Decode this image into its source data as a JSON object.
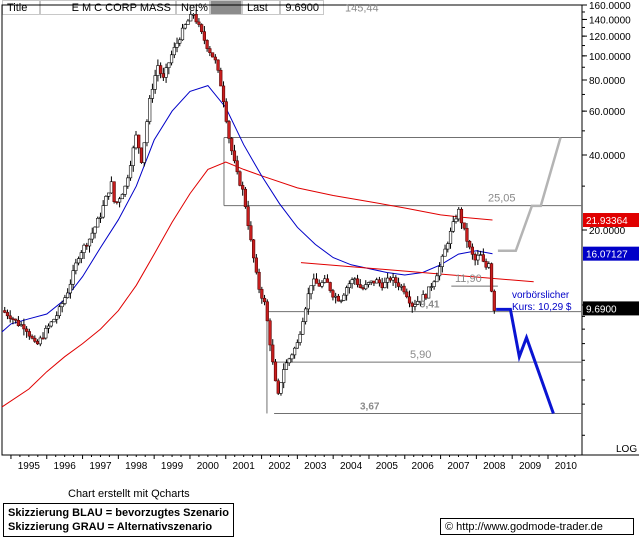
{
  "header": {
    "title_label": "Title",
    "instrument": "E M C CORP MASS",
    "net_label": "Net%",
    "last_label": "Last",
    "last_value": "9.6900"
  },
  "footer": {
    "credit": "Chart erstellt mit Qcharts",
    "legend_blue": "Skizzierung BLAU = bevorzugtes Szenario",
    "legend_grey": "Skizzierung GRAU = Alternativszenario",
    "source": "© http://www.godmode-trader.de"
  },
  "chart_data": {
    "type": "candlestick",
    "title": "E M C CORP MASS",
    "scale": "log",
    "ylim": [
      2.5,
      160
    ],
    "xlim": [
      1994.75,
      2010.95
    ],
    "y_ticks": [
      "160.0000",
      "140.0000",
      "120.0000",
      "100.0000",
      "80.0000",
      "60.0000",
      "40.0000",
      "20.0000"
    ],
    "y_tick_values": [
      160,
      140,
      120,
      100,
      80,
      60,
      40,
      20
    ],
    "log_label": "LOG",
    "x_ticks": [
      "1995",
      "1996",
      "1997",
      "1998",
      "1999",
      "2000",
      "2001",
      "2002",
      "2003",
      "2004",
      "2005",
      "2006",
      "2007",
      "2008",
      "2009",
      "2010"
    ],
    "price_labels": [
      {
        "text": "21.93364",
        "value": 21.93364,
        "color": "#e00000"
      },
      {
        "text": "16.07127",
        "value": 16.07127,
        "color": "#0000c8"
      },
      {
        "text": "9.6900",
        "value": 9.69,
        "color": "#000000"
      }
    ],
    "levels": [
      {
        "label": "145,44",
        "value": 145.44
      },
      {
        "label": "25,05",
        "value": 25.05
      },
      {
        "label": "11,90",
        "value": 11.9
      },
      {
        "label": "9,41",
        "value": 9.41
      },
      {
        "label": "5,90",
        "value": 5.9
      },
      {
        "label": "3,67",
        "value": 3.67
      }
    ],
    "note": {
      "line1": "vorbörslicher",
      "line2": "Kurs: 10,29 $"
    },
    "price_path": [
      [
        1994.75,
        9.5
      ],
      [
        1995.0,
        9.0
      ],
      [
        1995.2,
        8.4
      ],
      [
        1995.4,
        8.2
      ],
      [
        1995.7,
        6.8
      ],
      [
        1996.0,
        8.0
      ],
      [
        1996.3,
        9.2
      ],
      [
        1996.6,
        11.5
      ],
      [
        1996.9,
        16.0
      ],
      [
        1997.2,
        18.5
      ],
      [
        1997.5,
        23.0
      ],
      [
        1997.8,
        31.0
      ],
      [
        1997.9,
        25.0
      ],
      [
        1998.2,
        30.0
      ],
      [
        1998.5,
        48.0
      ],
      [
        1998.65,
        38.0
      ],
      [
        1998.9,
        70.0
      ],
      [
        1999.1,
        92.0
      ],
      [
        1999.25,
        80.0
      ],
      [
        1999.45,
        98.0
      ],
      [
        1999.7,
        118.0
      ],
      [
        1999.9,
        135.0
      ],
      [
        2000.1,
        148.0
      ],
      [
        2000.3,
        125.0
      ],
      [
        2000.5,
        108.0
      ],
      [
        2000.7,
        96.0
      ],
      [
        2000.9,
        73.0
      ],
      [
        2001.1,
        46.0
      ],
      [
        2001.3,
        34.0
      ],
      [
        2001.5,
        28.0
      ],
      [
        2001.7,
        18.0
      ],
      [
        2001.9,
        12.0
      ],
      [
        2002.1,
        10.0
      ],
      [
        2002.3,
        6.0
      ],
      [
        2002.45,
        4.2
      ],
      [
        2002.6,
        5.5
      ],
      [
        2002.8,
        6.2
      ],
      [
        2003.0,
        7.0
      ],
      [
        2003.2,
        9.5
      ],
      [
        2003.4,
        12.5
      ],
      [
        2003.6,
        12.0
      ],
      [
        2003.8,
        12.5
      ],
      [
        2004.0,
        11.0
      ],
      [
        2004.2,
        10.5
      ],
      [
        2004.4,
        12.0
      ],
      [
        2004.6,
        12.8
      ],
      [
        2004.8,
        11.5
      ],
      [
        2005.0,
        12.2
      ],
      [
        2005.2,
        12.5
      ],
      [
        2005.4,
        12.0
      ],
      [
        2005.6,
        12.8
      ],
      [
        2005.8,
        12.2
      ],
      [
        2006.0,
        11.5
      ],
      [
        2006.2,
        10.0
      ],
      [
        2006.4,
        10.5
      ],
      [
        2006.6,
        11.0
      ],
      [
        2006.8,
        12.5
      ],
      [
        2007.0,
        14.5
      ],
      [
        2007.2,
        18.0
      ],
      [
        2007.4,
        22.0
      ],
      [
        2007.5,
        24.0
      ],
      [
        2007.65,
        20.0
      ],
      [
        2007.8,
        17.0
      ],
      [
        2007.95,
        15.0
      ],
      [
        2008.1,
        16.0
      ],
      [
        2008.25,
        14.0
      ],
      [
        2008.35,
        15.0
      ],
      [
        2008.45,
        10.5
      ],
      [
        2008.5,
        9.69
      ]
    ],
    "ma_blue": [
      [
        1994.75,
        7.8
      ],
      [
        1995.0,
        8.4
      ],
      [
        1995.5,
        8.8
      ],
      [
        1996.0,
        9.2
      ],
      [
        1996.5,
        10.5
      ],
      [
        1997.0,
        13.0
      ],
      [
        1997.5,
        17.0
      ],
      [
        1998.0,
        22.0
      ],
      [
        1998.5,
        30.0
      ],
      [
        1999.0,
        46.0
      ],
      [
        1999.5,
        60.0
      ],
      [
        2000.0,
        72.0
      ],
      [
        2000.5,
        76.0
      ],
      [
        2001.0,
        62.0
      ],
      [
        2001.5,
        44.0
      ],
      [
        2002.0,
        33.0
      ],
      [
        2002.5,
        25.5
      ],
      [
        2003.0,
        20.5
      ],
      [
        2003.5,
        17.5
      ],
      [
        2004.0,
        15.5
      ],
      [
        2004.5,
        14.5
      ],
      [
        2005.0,
        14.0
      ],
      [
        2005.5,
        13.5
      ],
      [
        2006.0,
        13.2
      ],
      [
        2006.5,
        13.5
      ],
      [
        2007.0,
        14.5
      ],
      [
        2007.5,
        16.0
      ],
      [
        2008.0,
        16.5
      ],
      [
        2008.45,
        16.07
      ]
    ],
    "ma_red": [
      [
        1994.75,
        3.9
      ],
      [
        1995.5,
        4.6
      ],
      [
        1996.0,
        5.4
      ],
      [
        1996.5,
        6.2
      ],
      [
        1997.0,
        7.0
      ],
      [
        1997.5,
        8.0
      ],
      [
        1998.0,
        9.5
      ],
      [
        1998.5,
        12.0
      ],
      [
        1999.0,
        16.0
      ],
      [
        1999.5,
        21.5
      ],
      [
        2000.0,
        28.0
      ],
      [
        2000.5,
        35.0
      ],
      [
        2001.0,
        37.5
      ],
      [
        2001.5,
        35.0
      ],
      [
        2002.0,
        33.0
      ],
      [
        2003.0,
        29.5
      ],
      [
        2004.0,
        27.5
      ],
      [
        2005.0,
        26.0
      ],
      [
        2006.0,
        24.5
      ],
      [
        2007.0,
        23.0
      ],
      [
        2007.6,
        22.5
      ],
      [
        2008.45,
        21.93
      ]
    ],
    "trendlines": [
      {
        "color": "#e00000",
        "from": [
          2003.1,
          14.8
        ],
        "to": [
          2009.6,
          12.4
        ]
      }
    ],
    "scenario_blue": [
      [
        2008.55,
        9.6
      ],
      [
        2008.95,
        9.6
      ],
      [
        2009.2,
        6.2
      ],
      [
        2009.4,
        7.4
      ],
      [
        2010.15,
        3.67
      ]
    ],
    "scenario_grey": [
      [
        2008.6,
        16.5
      ],
      [
        2009.1,
        16.5
      ],
      [
        2009.55,
        25.0
      ],
      [
        2009.8,
        25.0
      ],
      [
        2010.35,
        47.0
      ]
    ]
  }
}
